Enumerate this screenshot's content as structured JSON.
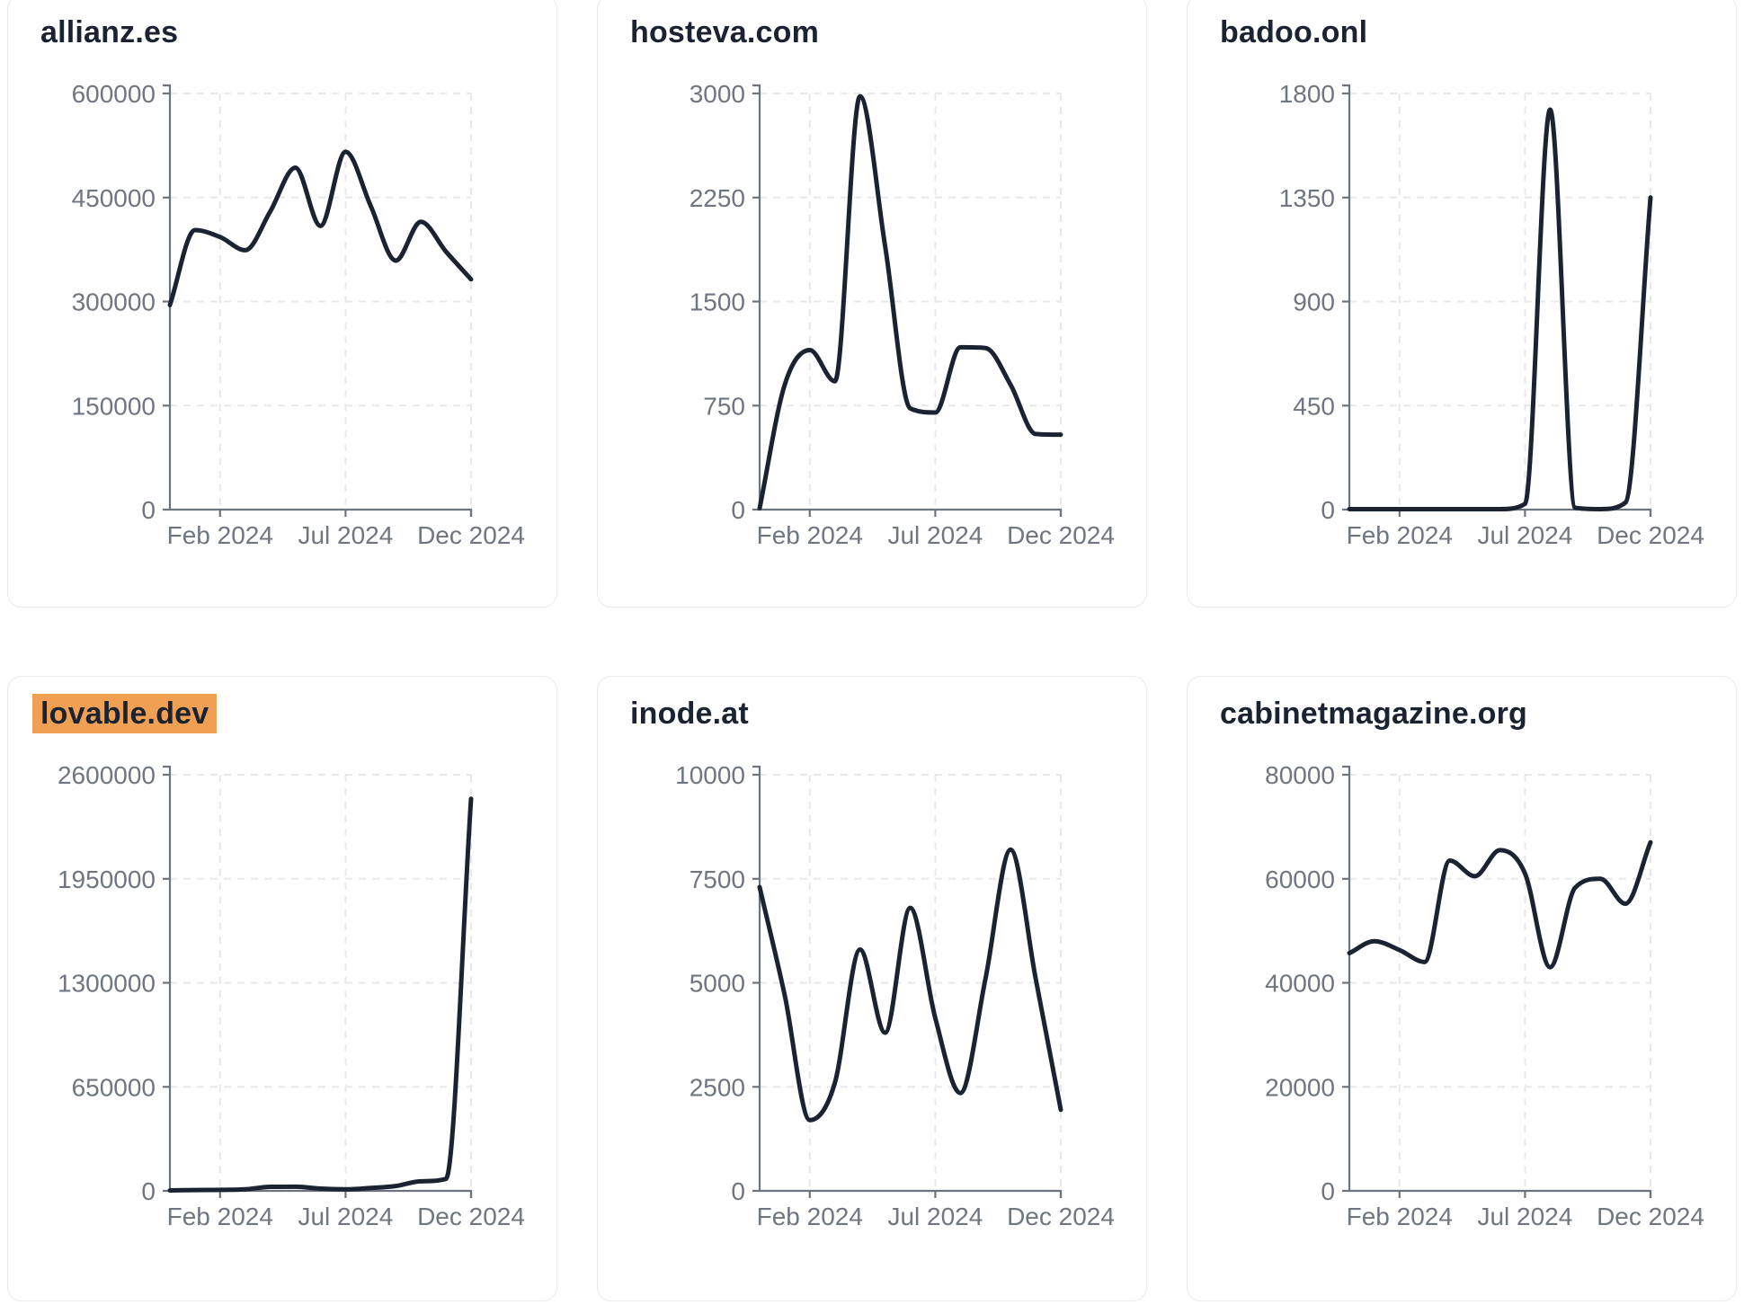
{
  "page": {
    "background": "#ffffff",
    "description": "Grid of six website-traffic line charts over 2024"
  },
  "style": {
    "line_color": "#1b2333",
    "title_color": "#1b2333",
    "tick_text_color": "#6f7681",
    "axis_color": "#6e747e",
    "grid_color": "#e7e8eb",
    "card_border_color": "#e9eaee",
    "highlight_color": "#f0a053"
  },
  "chart_data": [
    {
      "type": "line",
      "title": "allianz.es",
      "title_highlight": false,
      "x": [
        "Dec 2023",
        "Jan 2024",
        "Feb 2024",
        "Mar 2024",
        "Apr 2024",
        "May 2024",
        "Jun 2024",
        "Jul 2024",
        "Aug 2024",
        "Sep 2024",
        "Oct 2024",
        "Nov 2024",
        "Dec 2024"
      ],
      "values": [
        295000,
        403000,
        393000,
        374000,
        430000,
        493000,
        409000,
        516000,
        438000,
        359000,
        415000,
        372000,
        332000
      ],
      "ylim": [
        0,
        600000
      ],
      "yticks": [
        0,
        150000,
        300000,
        450000,
        600000
      ],
      "xticks": [
        "Feb 2024",
        "Jul 2024",
        "Dec 2024"
      ],
      "xtick_month_indices": [
        2,
        7,
        12
      ],
      "grid": true,
      "legend": "none"
    },
    {
      "type": "line",
      "title": "hosteva.com",
      "title_highlight": false,
      "x": [
        "Dec 2023",
        "Jan 2024",
        "Feb 2024",
        "Mar 2024",
        "Apr 2024",
        "May 2024",
        "Jun 2024",
        "Jul 2024",
        "Aug 2024",
        "Sep 2024",
        "Oct 2024",
        "Nov 2024",
        "Dec 2024"
      ],
      "values": [
        10,
        900,
        1150,
        925,
        2980,
        1900,
        730,
        700,
        1170,
        1165,
        900,
        545,
        540
      ],
      "ylim": [
        0,
        3000
      ],
      "yticks": [
        0,
        750,
        1500,
        2250,
        3000
      ],
      "xticks": [
        "Feb 2024",
        "Jul 2024",
        "Dec 2024"
      ],
      "xtick_month_indices": [
        2,
        7,
        12
      ],
      "grid": true,
      "legend": "none"
    },
    {
      "type": "line",
      "title": "badoo.onl",
      "title_highlight": false,
      "x": [
        "Dec 2023",
        "Jan 2024",
        "Feb 2024",
        "Mar 2024",
        "Apr 2024",
        "May 2024",
        "Jun 2024",
        "Jul 2024",
        "Aug 2024",
        "Sep 2024",
        "Oct 2024",
        "Nov 2024",
        "Dec 2024"
      ],
      "values": [
        2,
        2,
        2,
        2,
        2,
        2,
        2,
        25,
        1730,
        8,
        2,
        30,
        1350
      ],
      "ylim": [
        0,
        1800
      ],
      "yticks": [
        0,
        450,
        900,
        1350,
        1800
      ],
      "xticks": [
        "Feb 2024",
        "Jul 2024",
        "Dec 2024"
      ],
      "xtick_month_indices": [
        2,
        7,
        12
      ],
      "grid": true,
      "legend": "none"
    },
    {
      "type": "line",
      "title": "lovable.dev",
      "title_highlight": true,
      "x": [
        "Dec 2023",
        "Jan 2024",
        "Feb 2024",
        "Mar 2024",
        "Apr 2024",
        "May 2024",
        "Jun 2024",
        "Jul 2024",
        "Aug 2024",
        "Sep 2024",
        "Oct 2024",
        "Nov 2024",
        "Dec 2024"
      ],
      "values": [
        3000,
        5000,
        6000,
        10000,
        25000,
        26000,
        14000,
        10000,
        18000,
        30000,
        60000,
        75000,
        2450000
      ],
      "ylim": [
        0,
        2600000
      ],
      "yticks": [
        0,
        650000,
        1300000,
        1950000,
        2600000
      ],
      "xticks": [
        "Feb 2024",
        "Jul 2024",
        "Dec 2024"
      ],
      "xtick_month_indices": [
        2,
        7,
        12
      ],
      "grid": true,
      "legend": "none"
    },
    {
      "type": "line",
      "title": "inode.at",
      "title_highlight": false,
      "x": [
        "Dec 2023",
        "Jan 2024",
        "Feb 2024",
        "Mar 2024",
        "Apr 2024",
        "May 2024",
        "Jun 2024",
        "Jul 2024",
        "Aug 2024",
        "Sep 2024",
        "Oct 2024",
        "Nov 2024",
        "Dec 2024"
      ],
      "values": [
        7300,
        4700,
        1700,
        2600,
        5800,
        3800,
        6800,
        4150,
        2350,
        5100,
        8200,
        5100,
        1950
      ],
      "ylim": [
        0,
        10000
      ],
      "yticks": [
        0,
        2500,
        5000,
        7500,
        10000
      ],
      "xticks": [
        "Feb 2024",
        "Jul 2024",
        "Dec 2024"
      ],
      "xtick_month_indices": [
        2,
        7,
        12
      ],
      "grid": true,
      "legend": "none"
    },
    {
      "type": "line",
      "title": "cabinetmagazine.org",
      "title_highlight": false,
      "x": [
        "Dec 2023",
        "Jan 2024",
        "Feb 2024",
        "Mar 2024",
        "Apr 2024",
        "May 2024",
        "Jun 2024",
        "Jul 2024",
        "Aug 2024",
        "Sep 2024",
        "Oct 2024",
        "Nov 2024",
        "Dec 2024"
      ],
      "values": [
        45700,
        48000,
        46300,
        44000,
        63500,
        60500,
        65500,
        61000,
        43000,
        58300,
        60000,
        55200,
        67000
      ],
      "ylim": [
        0,
        80000
      ],
      "yticks": [
        0,
        20000,
        40000,
        60000,
        80000
      ],
      "xticks": [
        "Feb 2024",
        "Jul 2024",
        "Dec 2024"
      ],
      "xtick_month_indices": [
        2,
        7,
        12
      ],
      "grid": true,
      "legend": "none"
    }
  ]
}
